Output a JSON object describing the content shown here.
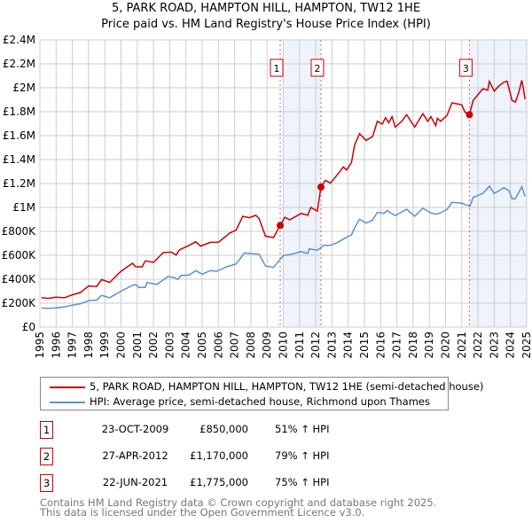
{
  "title": "5, PARK ROAD, HAMPTON HILL, HAMPTON, TW12 1HE",
  "subtitle": "Price paid vs. HM Land Registry's House Price Index (HPI)",
  "chart_data": {
    "type": "line",
    "xlim": [
      1995,
      2025
    ],
    "ylim": [
      0,
      2400000
    ],
    "y_ticks": [
      {
        "v": 0,
        "l": "£0"
      },
      {
        "v": 200000,
        "l": "£200K"
      },
      {
        "v": 400000,
        "l": "£400K"
      },
      {
        "v": 600000,
        "l": "£600K"
      },
      {
        "v": 800000,
        "l": "£800K"
      },
      {
        "v": 1000000,
        "l": "£1M"
      },
      {
        "v": 1200000,
        "l": "£1.2M"
      },
      {
        "v": 1400000,
        "l": "£1.4M"
      },
      {
        "v": 1600000,
        "l": "£1.6M"
      },
      {
        "v": 1800000,
        "l": "£1.8M"
      },
      {
        "v": 2000000,
        "l": "£2M"
      },
      {
        "v": 2200000,
        "l": "£2.2M"
      },
      {
        "v": 2400000,
        "l": "£2.4M"
      }
    ],
    "x_ticks": [
      "1995",
      "1996",
      "1997",
      "1998",
      "1999",
      "2000",
      "2001",
      "2002",
      "2003",
      "2004",
      "2005",
      "2006",
      "2007",
      "2008",
      "2009",
      "2010",
      "2011",
      "2012",
      "2013",
      "2014",
      "2015",
      "2016",
      "2017",
      "2018",
      "2019",
      "2020",
      "2021",
      "2022",
      "2023",
      "2024",
      "2025"
    ],
    "grid": true,
    "shaded_ranges": [
      [
        2010.0,
        2012.32
      ],
      [
        2021.47,
        2025
      ]
    ],
    "series": [
      {
        "name": "5, PARK ROAD, HAMPTON HILL, HAMPTON, TW12 1HE (semi-detached house)",
        "color": "#cc0000",
        "points": [
          [
            1995.1,
            246
          ],
          [
            1995.5,
            240
          ],
          [
            1996,
            250
          ],
          [
            1996.5,
            245
          ],
          [
            1997,
            270
          ],
          [
            1997.5,
            290
          ],
          [
            1998,
            344
          ],
          [
            1998.5,
            339
          ],
          [
            1998.8,
            397
          ],
          [
            1999.3,
            373
          ],
          [
            2000,
            467
          ],
          [
            2000.7,
            533
          ],
          [
            2000.9,
            504
          ],
          [
            2001.3,
            504
          ],
          [
            2001.5,
            553
          ],
          [
            2002,
            541
          ],
          [
            2002.6,
            622
          ],
          [
            2003.1,
            627
          ],
          [
            2003.4,
            602
          ],
          [
            2003.6,
            646
          ],
          [
            2004.2,
            683
          ],
          [
            2004.6,
            713
          ],
          [
            2004.9,
            676
          ],
          [
            2005.5,
            708
          ],
          [
            2006,
            708
          ],
          [
            2006.7,
            786
          ],
          [
            2007.1,
            811
          ],
          [
            2007.5,
            926
          ],
          [
            2007.9,
            914
          ],
          [
            2008.3,
            934
          ],
          [
            2008.5,
            909
          ],
          [
            2008.9,
            760
          ],
          [
            2009.4,
            748
          ],
          [
            2009.81,
            850
          ],
          [
            2010.1,
            918
          ],
          [
            2010.4,
            896
          ],
          [
            2011.1,
            950
          ],
          [
            2011.5,
            935
          ],
          [
            2011.7,
            1000
          ],
          [
            2012.1,
            970
          ],
          [
            2012.32,
            1170
          ],
          [
            2012.6,
            1227
          ],
          [
            2012.9,
            1203
          ],
          [
            2013.2,
            1252
          ],
          [
            2013.7,
            1338
          ],
          [
            2013.9,
            1313
          ],
          [
            2014.2,
            1375
          ],
          [
            2014.4,
            1523
          ],
          [
            2014.7,
            1617
          ],
          [
            2015.1,
            1560
          ],
          [
            2015.5,
            1592
          ],
          [
            2015.8,
            1720
          ],
          [
            2016.1,
            1696
          ],
          [
            2016.3,
            1750
          ],
          [
            2016.5,
            1708
          ],
          [
            2016.7,
            1758
          ],
          [
            2016.9,
            1671
          ],
          [
            2017.3,
            1720
          ],
          [
            2017.6,
            1775
          ],
          [
            2018.1,
            1671
          ],
          [
            2018.6,
            1783
          ],
          [
            2018.9,
            1720
          ],
          [
            2019.1,
            1758
          ],
          [
            2019.4,
            1684
          ],
          [
            2019.5,
            1745
          ],
          [
            2019.7,
            1720
          ],
          [
            2020.1,
            1770
          ],
          [
            2020.4,
            1874
          ],
          [
            2021.0,
            1857
          ],
          [
            2021.2,
            1795
          ],
          [
            2021.47,
            1775
          ],
          [
            2021.7,
            1893
          ],
          [
            2022.3,
            1992
          ],
          [
            2022.6,
            1980
          ],
          [
            2022.7,
            2054
          ],
          [
            2023.0,
            1972
          ],
          [
            2023.3,
            2017
          ],
          [
            2023.6,
            2047
          ],
          [
            2023.8,
            2054
          ],
          [
            2024.1,
            1893
          ],
          [
            2024.3,
            1881
          ],
          [
            2024.5,
            1956
          ],
          [
            2024.7,
            2062
          ],
          [
            2024.8,
            1990
          ],
          [
            2024.9,
            1904
          ]
        ]
      },
      {
        "name": "HPI: Average price, semi-detached house, Richmond upon Thames",
        "color": "#5b8fd6",
        "points": [
          [
            1995.1,
            160
          ],
          [
            1995.5,
            156
          ],
          [
            1996,
            160
          ],
          [
            1996.5,
            168
          ],
          [
            1997,
            184
          ],
          [
            1997.5,
            195
          ],
          [
            1998,
            221
          ],
          [
            1998.5,
            226
          ],
          [
            1998.8,
            265
          ],
          [
            1999.3,
            246
          ],
          [
            2000,
            300
          ],
          [
            2000.7,
            349
          ],
          [
            2000.9,
            356
          ],
          [
            2001.1,
            332
          ],
          [
            2001.5,
            332
          ],
          [
            2001.6,
            373
          ],
          [
            2002.2,
            356
          ],
          [
            2002.9,
            423
          ],
          [
            2003.3,
            413
          ],
          [
            2003.5,
            398
          ],
          [
            2003.7,
            430
          ],
          [
            2004.2,
            435
          ],
          [
            2004.6,
            472
          ],
          [
            2005,
            442
          ],
          [
            2005.5,
            472
          ],
          [
            2005.9,
            467
          ],
          [
            2006.5,
            504
          ],
          [
            2007.1,
            528
          ],
          [
            2007.6,
            619
          ],
          [
            2008,
            614
          ],
          [
            2008.5,
            609
          ],
          [
            2008.9,
            511
          ],
          [
            2009.4,
            499
          ],
          [
            2010.0,
            597
          ],
          [
            2010.4,
            605
          ],
          [
            2011.1,
            630
          ],
          [
            2011.5,
            615
          ],
          [
            2011.6,
            654
          ],
          [
            2012.1,
            642
          ],
          [
            2012.5,
            684
          ],
          [
            2012.9,
            684
          ],
          [
            2013.3,
            704
          ],
          [
            2013.9,
            751
          ],
          [
            2014.2,
            770
          ],
          [
            2014.4,
            832
          ],
          [
            2014.7,
            901
          ],
          [
            2015.1,
            869
          ],
          [
            2015.5,
            894
          ],
          [
            2015.8,
            960
          ],
          [
            2016.2,
            950
          ],
          [
            2016.4,
            975
          ],
          [
            2016.6,
            955
          ],
          [
            2016.9,
            931
          ],
          [
            2017.6,
            985
          ],
          [
            2018.1,
            926
          ],
          [
            2018.6,
            993
          ],
          [
            2019.1,
            955
          ],
          [
            2019.4,
            943
          ],
          [
            2019.7,
            955
          ],
          [
            2020.1,
            985
          ],
          [
            2020.4,
            1042
          ],
          [
            2021.0,
            1035
          ],
          [
            2021.5,
            1010
          ],
          [
            2021.7,
            1084
          ],
          [
            2022.3,
            1116
          ],
          [
            2022.7,
            1178
          ],
          [
            2023.0,
            1116
          ],
          [
            2023.6,
            1165
          ],
          [
            2023.9,
            1141
          ],
          [
            2024.1,
            1072
          ],
          [
            2024.3,
            1072
          ],
          [
            2024.7,
            1173
          ],
          [
            2024.9,
            1091
          ]
        ]
      }
    ],
    "y_unit_points": "thousands GBP",
    "sales": [
      {
        "label": "1",
        "x": 2009.81,
        "value": 850000
      },
      {
        "label": "2",
        "x": 2012.32,
        "value": 1170000
      },
      {
        "label": "3",
        "x": 2021.47,
        "value": 1775000
      }
    ]
  },
  "legend": [
    {
      "label": "5, PARK ROAD, HAMPTON HILL, HAMPTON, TW12 1HE (semi-detached house)",
      "color": "#cc0000"
    },
    {
      "label": "HPI: Average price, semi-detached house, Richmond upon Thames",
      "color": "#5b8fd6"
    }
  ],
  "transactions": [
    {
      "num": "1",
      "date": "23-OCT-2009",
      "price": "£850,000",
      "hpi": "51% ↑ HPI"
    },
    {
      "num": "2",
      "date": "27-APR-2012",
      "price": "£1,170,000",
      "hpi": "79% ↑ HPI"
    },
    {
      "num": "3",
      "date": "22-JUN-2021",
      "price": "£1,775,000",
      "hpi": "75% ↑ HPI"
    }
  ],
  "footer": [
    "Contains HM Land Registry data © Crown copyright and database right 2025.",
    "This data is licensed under the Open Government Licence v3.0."
  ]
}
